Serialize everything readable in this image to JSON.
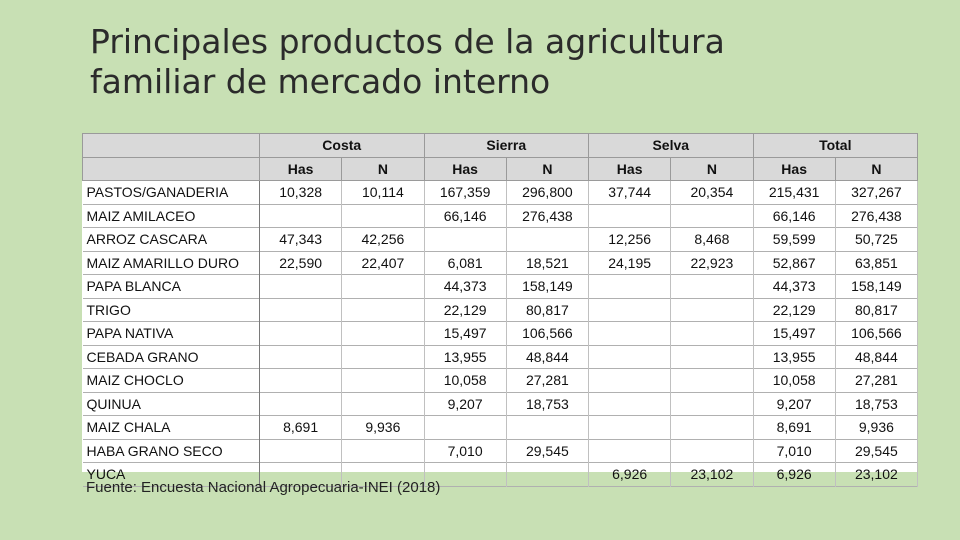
{
  "title_line1": "Principales productos de la agricultura",
  "title_line2": "familiar de mercado interno",
  "regions": [
    "Costa",
    "Sierra",
    "Selva",
    "Total"
  ],
  "subheaders": [
    "Has",
    "N",
    "Has",
    "N",
    "Has",
    "N",
    "Has",
    "N"
  ],
  "rows": [
    {
      "label": "PASTOS/GANADERIA",
      "values": [
        "10,328",
        "10,114",
        "167,359",
        "296,800",
        "37,744",
        "20,354",
        "215,431",
        "327,267"
      ]
    },
    {
      "label": "MAIZ AMILACEO",
      "values": [
        "",
        "",
        "66,146",
        "276,438",
        "",
        "",
        "66,146",
        "276,438"
      ]
    },
    {
      "label": "ARROZ CASCARA",
      "values": [
        "47,343",
        "42,256",
        "",
        "",
        "12,256",
        "8,468",
        "59,599",
        "50,725"
      ]
    },
    {
      "label": "MAIZ AMARILLO DURO",
      "values": [
        "22,590",
        "22,407",
        "6,081",
        "18,521",
        "24,195",
        "22,923",
        "52,867",
        "63,851"
      ]
    },
    {
      "label": "PAPA BLANCA",
      "values": [
        "",
        "",
        "44,373",
        "158,149",
        "",
        "",
        "44,373",
        "158,149"
      ]
    },
    {
      "label": "TRIGO",
      "values": [
        "",
        "",
        "22,129",
        "80,817",
        "",
        "",
        "22,129",
        "80,817"
      ]
    },
    {
      "label": "PAPA NATIVA",
      "values": [
        "",
        "",
        "15,497",
        "106,566",
        "",
        "",
        "15,497",
        "106,566"
      ]
    },
    {
      "label": "CEBADA GRANO",
      "values": [
        "",
        "",
        "13,955",
        "48,844",
        "",
        "",
        "13,955",
        "48,844"
      ]
    },
    {
      "label": "MAIZ CHOCLO",
      "values": [
        "",
        "",
        "10,058",
        "27,281",
        "",
        "",
        "10,058",
        "27,281"
      ]
    },
    {
      "label": "QUINUA",
      "values": [
        "",
        "",
        "9,207",
        "18,753",
        "",
        "",
        "9,207",
        "18,753"
      ]
    },
    {
      "label": "MAIZ CHALA",
      "values": [
        "8,691",
        "9,936",
        "",
        "",
        "",
        "",
        "8,691",
        "9,936"
      ]
    },
    {
      "label": "HABA GRANO SECO",
      "values": [
        "",
        "",
        "7,010",
        "29,545",
        "",
        "",
        "7,010",
        "29,545"
      ]
    },
    {
      "label": "YUCA",
      "values": [
        "",
        "",
        "",
        "",
        "6,926",
        "23,102",
        "6,926",
        "23,102"
      ]
    }
  ],
  "source": "Fuente: Encuesta Nacional Agropecuaria-INEI (2018)"
}
